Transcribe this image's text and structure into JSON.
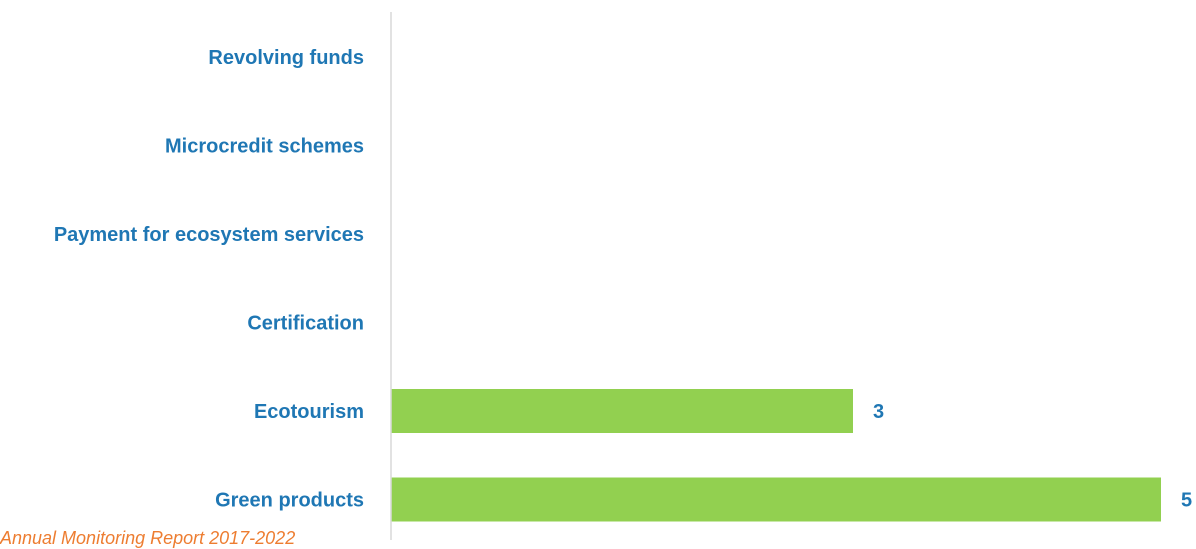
{
  "chart_data": {
    "type": "bar",
    "orientation": "horizontal",
    "categories": [
      "Revolving funds",
      "Microcredit schemes",
      "Payment for ecosystem services",
      "Certification",
      "Ecotourism",
      "Green products"
    ],
    "values": [
      0,
      0,
      0,
      0,
      3,
      5
    ],
    "data_labels": [
      "",
      "",
      "",
      "",
      "3",
      "5"
    ],
    "xlim": [
      0,
      5
    ],
    "grid": false,
    "legend": "none",
    "colors": {
      "bar": "#92d050",
      "label": "#1f77b4",
      "axis": "#d9d9d9",
      "note": "#ed7d31"
    }
  },
  "source_note": "Annual Monitoring Report 2017-2022"
}
